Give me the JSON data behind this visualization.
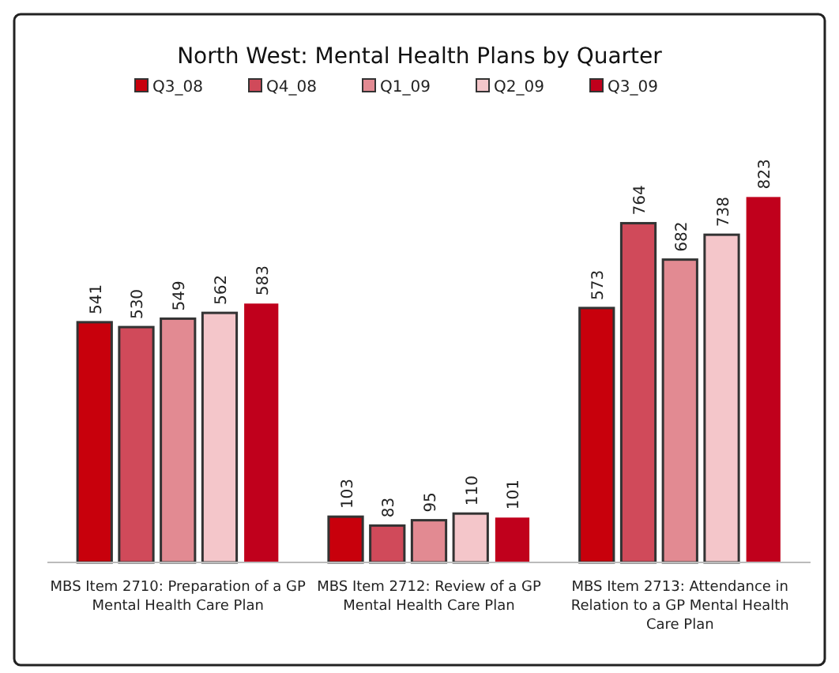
{
  "chart_data": {
    "type": "bar",
    "title": "North West: Mental Health Plans by Quarter",
    "categories": [
      "MBS Item 2710: Preparation of a GP Mental Health Care Plan",
      "MBS Item 2712: Review of a GP Mental Health Care Plan",
      "MBS Item 2713: Attendance in Relation to a GP Mental Health Care Plan"
    ],
    "series": [
      {
        "name": "Q3_08",
        "color": "#c8000c",
        "values": [
          541,
          103,
          573
        ]
      },
      {
        "name": "Q4_08",
        "color": "#d04a5a",
        "values": [
          530,
          83,
          764
        ]
      },
      {
        "name": "Q1_09",
        "color": "#e28a92",
        "values": [
          549,
          95,
          682
        ]
      },
      {
        "name": "Q2_09",
        "color": "#f4c6ca",
        "values": [
          562,
          110,
          738
        ]
      },
      {
        "name": "Q3_09",
        "color": "#c0001c",
        "values": [
          583,
          101,
          823
        ]
      }
    ],
    "data_labels": true,
    "legend": "top"
  }
}
